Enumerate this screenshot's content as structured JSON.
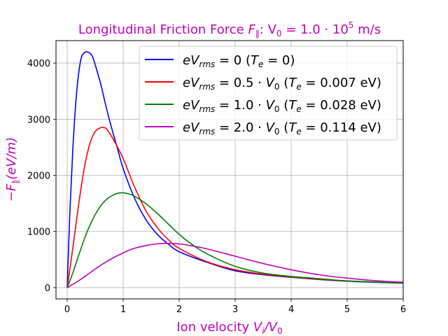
{
  "chart_data": {
    "type": "line",
    "title": {
      "pre": "Longitudinal Friction Force ",
      "sym": "F",
      "sub": "∥",
      "post": ": V",
      "sub0": "0",
      "eq": " = 1.0 · 10",
      "sup": "5",
      "unit": " m/s"
    },
    "xlabel": {
      "pre": "Ion velocity ",
      "v": "V",
      "sub_i": "i",
      "slash": "/V",
      "sub_0": "0"
    },
    "ylabel": {
      "pre": "−F",
      "sub": "∥",
      "post": "(eV/m)"
    },
    "xlim": [
      -0.2,
      6.0
    ],
    "ylim": [
      -200,
      4400
    ],
    "xticks": [
      0,
      1,
      2,
      3,
      4,
      5,
      6
    ],
    "xtick_labels": [
      "0",
      "1",
      "2",
      "3",
      "4",
      "5",
      "6"
    ],
    "yticks": [
      0,
      1000,
      2000,
      3000,
      4000
    ],
    "ytick_labels": [
      "0",
      "1000",
      "2000",
      "3000",
      "4000"
    ],
    "grid": true,
    "legend_position": "top-right",
    "series": [
      {
        "name": "eV_rms = 0 (T_e = 0)",
        "legend": {
          "a": "eV",
          "s": "rms",
          "b": " = 0 (",
          "c": "T",
          "d": "e",
          "e": " = 0)"
        },
        "color": "#0000ff",
        "x": [
          0.0,
          0.05,
          0.1,
          0.15,
          0.2,
          0.25,
          0.3,
          0.35,
          0.4,
          0.45,
          0.5,
          0.6,
          0.7,
          0.8,
          0.9,
          1.0,
          1.2,
          1.4,
          1.6,
          1.8,
          2.0,
          2.5,
          3.0,
          3.5,
          4.0,
          4.5,
          5.0,
          5.5,
          6.0
        ],
        "y": [
          0,
          1400,
          2450,
          3250,
          3780,
          4090,
          4180,
          4200,
          4180,
          4120,
          3970,
          3620,
          3200,
          2820,
          2470,
          2120,
          1600,
          1220,
          960,
          780,
          640,
          450,
          300,
          230,
          185,
          145,
          115,
          95,
          80
        ]
      },
      {
        "name": "eV_rms = 0.5 · V_0 (T_e = 0.007 eV)",
        "legend": {
          "a": "eV",
          "s": "rms",
          "b": " = 0.5 · ",
          "v": "V",
          "v0": "0",
          "c": " (",
          "t": "T",
          "d": "e",
          "e": " = 0.007 eV)"
        },
        "color": "#ff0000",
        "x": [
          0.0,
          0.1,
          0.2,
          0.3,
          0.4,
          0.5,
          0.6,
          0.65,
          0.7,
          0.8,
          0.9,
          1.0,
          1.1,
          1.2,
          1.4,
          1.6,
          1.8,
          2.0,
          2.5,
          3.0,
          3.5,
          4.0,
          4.5,
          5.0,
          5.5,
          6.0
        ],
        "y": [
          0,
          700,
          1450,
          2100,
          2550,
          2780,
          2850,
          2850,
          2830,
          2680,
          2500,
          2300,
          2050,
          1800,
          1380,
          1080,
          860,
          700,
          460,
          320,
          240,
          190,
          150,
          120,
          100,
          85
        ]
      },
      {
        "name": "eV_rms = 1.0 · V_0 (T_e = 0.028 eV)",
        "legend": {
          "a": "eV",
          "s": "rms",
          "b": " = 1.0 · ",
          "v": "V",
          "v0": "0",
          "c": " (",
          "t": "T",
          "d": "e",
          "e": " = 0.028 eV)"
        },
        "color": "#008000",
        "x": [
          0.0,
          0.1,
          0.2,
          0.3,
          0.4,
          0.5,
          0.6,
          0.7,
          0.8,
          0.9,
          1.0,
          1.1,
          1.2,
          1.4,
          1.6,
          1.8,
          2.0,
          2.2,
          2.5,
          3.0,
          3.5,
          4.0,
          4.5,
          5.0,
          5.5,
          6.0
        ],
        "y": [
          0,
          260,
          560,
          850,
          1100,
          1300,
          1460,
          1570,
          1640,
          1680,
          1690,
          1670,
          1630,
          1500,
          1330,
          1140,
          950,
          790,
          600,
          380,
          260,
          200,
          160,
          120,
          100,
          85
        ]
      },
      {
        "name": "eV_rms = 2.0 · V_0 (T_e = 0.114 eV)",
        "legend": {
          "a": "eV",
          "s": "rms",
          "b": " = 2.0 · ",
          "v": "V",
          "v0": "0",
          "c": " (",
          "t": "T",
          "d": "e",
          "e": " = 0.114 eV)"
        },
        "color": "#bf00bf",
        "x": [
          0.0,
          0.2,
          0.4,
          0.6,
          0.8,
          1.0,
          1.2,
          1.4,
          1.6,
          1.8,
          2.0,
          2.2,
          2.5,
          3.0,
          3.5,
          4.0,
          4.5,
          5.0,
          5.5,
          6.0
        ],
        "y": [
          0,
          120,
          260,
          400,
          520,
          620,
          700,
          750,
          780,
          790,
          780,
          750,
          690,
          560,
          430,
          320,
          230,
          170,
          125,
          95
        ]
      }
    ]
  }
}
